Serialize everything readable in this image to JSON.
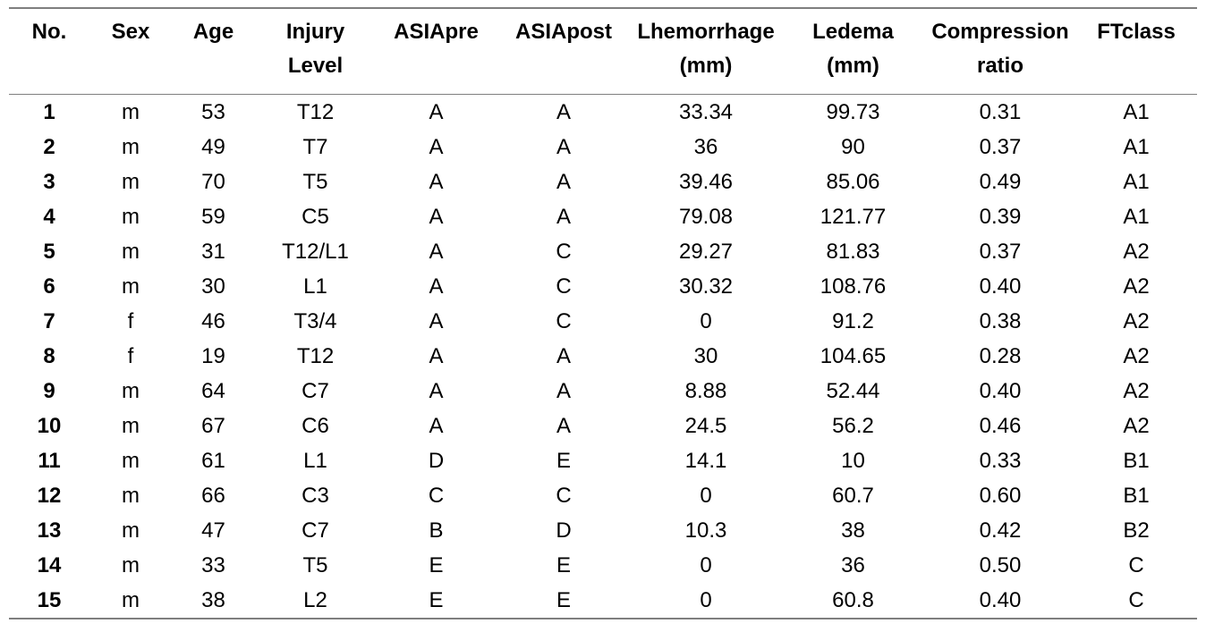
{
  "table": {
    "columns": [
      {
        "key": "no",
        "label": "No."
      },
      {
        "key": "sex",
        "label": "Sex"
      },
      {
        "key": "age",
        "label": "Age"
      },
      {
        "key": "injury-level",
        "label": "Injury\nLevel"
      },
      {
        "key": "asia-pre",
        "label": "ASIApre"
      },
      {
        "key": "asia-post",
        "label": "ASIApost"
      },
      {
        "key": "lhemorrhage-mm",
        "label": "Lhemorrhage\n(mm)"
      },
      {
        "key": "ledema-mm",
        "label": "Ledema\n(mm)"
      },
      {
        "key": "compression-ratio",
        "label": "Compression\nratio"
      },
      {
        "key": "ft-class",
        "label": "FTclass"
      }
    ],
    "rows": [
      [
        "1",
        "m",
        "53",
        "T12",
        "A",
        "A",
        "33.34",
        "99.73",
        "0.31",
        "A1"
      ],
      [
        "2",
        "m",
        "49",
        "T7",
        "A",
        "A",
        "36",
        "90",
        "0.37",
        "A1"
      ],
      [
        "3",
        "m",
        "70",
        "T5",
        "A",
        "A",
        "39.46",
        "85.06",
        "0.49",
        "A1"
      ],
      [
        "4",
        "m",
        "59",
        "C5",
        "A",
        "A",
        "79.08",
        "121.77",
        "0.39",
        "A1"
      ],
      [
        "5",
        "m",
        "31",
        "T12/L1",
        "A",
        "C",
        "29.27",
        "81.83",
        "0.37",
        "A2"
      ],
      [
        "6",
        "m",
        "30",
        "L1",
        "A",
        "C",
        "30.32",
        "108.76",
        "0.40",
        "A2"
      ],
      [
        "7",
        "f",
        "46",
        "T3/4",
        "A",
        "C",
        "0",
        "91.2",
        "0.38",
        "A2"
      ],
      [
        "8",
        "f",
        "19",
        "T12",
        "A",
        "A",
        "30",
        "104.65",
        "0.28",
        "A2"
      ],
      [
        "9",
        "m",
        "64",
        "C7",
        "A",
        "A",
        "8.88",
        "52.44",
        "0.40",
        "A2"
      ],
      [
        "10",
        "m",
        "67",
        "C6",
        "A",
        "A",
        "24.5",
        "56.2",
        "0.46",
        "A2"
      ],
      [
        "11",
        "m",
        "61",
        "L1",
        "D",
        "E",
        "14.1",
        "10",
        "0.33",
        "B1"
      ],
      [
        "12",
        "m",
        "66",
        "C3",
        "C",
        "C",
        "0",
        "60.7",
        "0.60",
        "B1"
      ],
      [
        "13",
        "m",
        "47",
        "C7",
        "B",
        "D",
        "10.3",
        "38",
        "0.42",
        "B2"
      ],
      [
        "14",
        "m",
        "33",
        "T5",
        "E",
        "E",
        "0",
        "36",
        "0.50",
        "C"
      ],
      [
        "15",
        "m",
        "38",
        "L2",
        "E",
        "E",
        "0",
        "60.8",
        "0.40",
        "C"
      ]
    ]
  },
  "colors": {
    "rule": "#7f7f7f",
    "text": "#000000",
    "background": "#ffffff"
  }
}
